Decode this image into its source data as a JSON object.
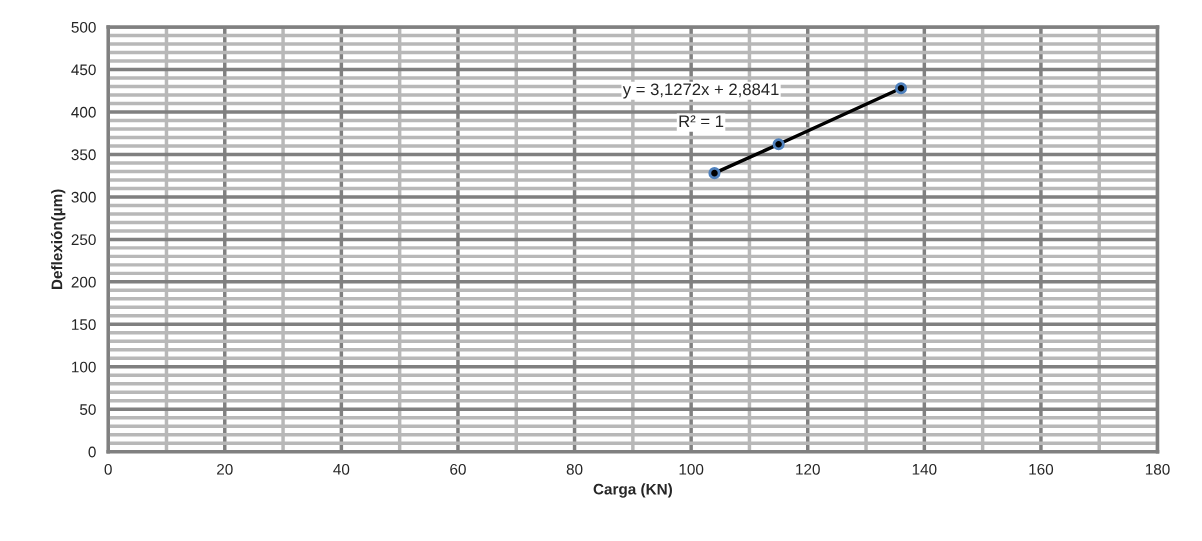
{
  "chart_data": {
    "type": "scatter",
    "xlabel": "Carga (KN)",
    "ylabel": "Deflexión(µm)",
    "series": [
      {
        "color": "#4f81bd",
        "x": [
          104,
          115,
          136
        ],
        "values": [
          328,
          362,
          428
        ],
        "marker": "circle"
      },
      {
        "type": "line",
        "color": "#000000",
        "x": [
          104,
          115,
          136
        ],
        "values": [
          328,
          362,
          428
        ],
        "marker": "none",
        "line_style": "solid"
      }
    ],
    "xlim": [
      0,
      180
    ],
    "xticks": [
      0,
      20,
      40,
      60,
      80,
      100,
      120,
      140,
      160,
      180
    ],
    "ylim": [
      0,
      500
    ],
    "yticks": [
      0,
      50,
      100,
      150,
      200,
      250,
      300,
      350,
      400,
      450,
      500
    ],
    "grid": true,
    "legend": false,
    "annotations": [
      "y = 3,1272x + 2,8841",
      "R² = 1"
    ]
  }
}
